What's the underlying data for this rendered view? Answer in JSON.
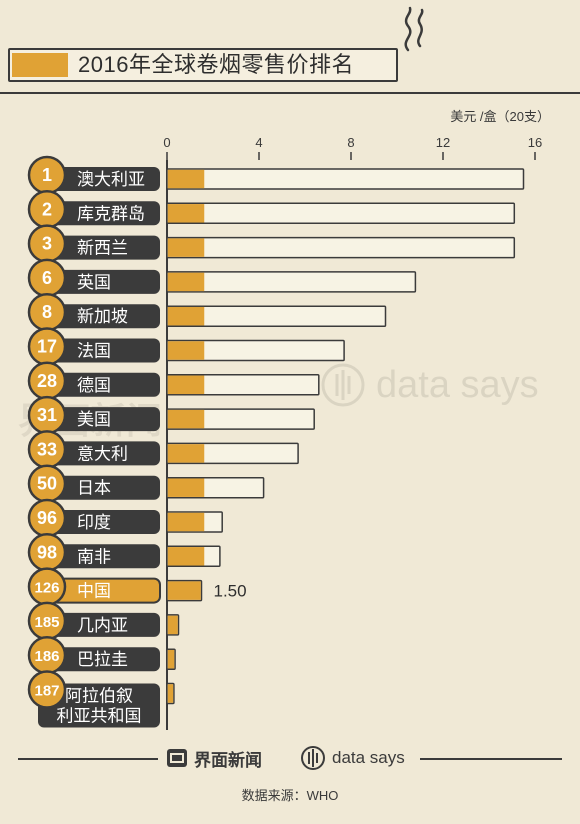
{
  "title": "2016年全球卷烟零售价排名",
  "unit": "美元 /盒（20支）",
  "colors": {
    "accent": "#e0a235",
    "bar_bg": "#f7f3e4",
    "label_bg": "#3b3b3b",
    "highlight": "#e0a235",
    "background": "#f0e9d6"
  },
  "chart_data": {
    "type": "bar",
    "orientation": "horizontal",
    "title": "2016年全球卷烟零售价排名",
    "xlabel": "美元 /盒（20支）",
    "xlim": [
      0,
      16
    ],
    "xticks": [
      "0",
      "4",
      "8",
      "12",
      "16"
    ],
    "categories": [
      "澳大利亚",
      "库克群岛",
      "新西兰",
      "英国",
      "新加坡",
      "法国",
      "德国",
      "美国",
      "意大利",
      "日本",
      "印度",
      "南非",
      "中国",
      "几内亚",
      "巴拉圭",
      "阿拉伯叙利亚共和国"
    ],
    "ranks": [
      "1",
      "2",
      "3",
      "6",
      "8",
      "17",
      "28",
      "31",
      "33",
      "50",
      "96",
      "98",
      "126",
      "185",
      "186",
      "187"
    ],
    "values": [
      15.5,
      15.1,
      15.1,
      10.8,
      9.5,
      7.7,
      6.6,
      6.4,
      5.7,
      4.2,
      2.4,
      2.3,
      1.5,
      0.5,
      0.35,
      0.3
    ],
    "highlight_category": "中国",
    "highlight_label": "1.50"
  },
  "footer": {
    "brand1": "界面新闻",
    "brand2": "data says",
    "source": "数据来源：WHO"
  },
  "watermarks": {
    "left": "界面新闻",
    "right": "data says"
  }
}
